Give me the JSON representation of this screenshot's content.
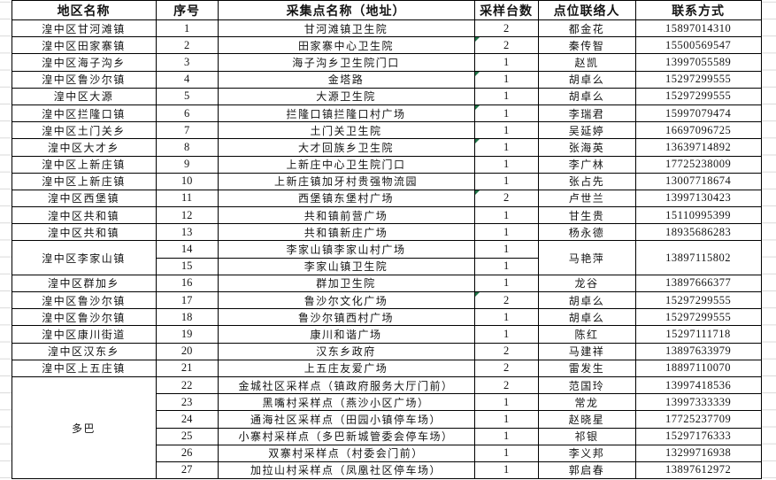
{
  "colors": {
    "flag_green": "#1f7246",
    "grid_line": "#d9d9d9",
    "cell_border": "#000000"
  },
  "table": {
    "headers": [
      "地区名称",
      "序号",
      "采集点名称（地址）",
      "采样台数",
      "点位联络人",
      "联系方式"
    ],
    "rows": [
      {
        "region": "湟中区甘河滩镇",
        "region_span": 1,
        "no": "1",
        "site": "甘河滩镇卫生院",
        "count": "2",
        "flag": false,
        "contact": "都金花",
        "merge_span": 1,
        "phone": "15897014310"
      },
      {
        "region": "湟中区田家寨镇",
        "region_span": 1,
        "no": "2",
        "site": "田家寨中心卫生院",
        "count": "2",
        "flag": true,
        "contact": "秦传智",
        "merge_span": 1,
        "phone": "15500569547"
      },
      {
        "region": "湟中区海子沟乡",
        "region_span": 1,
        "no": "3",
        "site": "海子沟乡卫生院门口",
        "count": "1",
        "flag": false,
        "contact": "赵凯",
        "merge_span": 1,
        "phone": "13997055589"
      },
      {
        "region": "湟中区鲁沙尔镇",
        "region_span": 1,
        "no": "4",
        "site": "金塔路",
        "count": "1",
        "flag": true,
        "contact": "胡卓么",
        "merge_span": 1,
        "phone": "15297299555"
      },
      {
        "region": "湟中区大源",
        "region_span": 1,
        "no": "5",
        "site": "大源卫生院",
        "count": "1",
        "flag": false,
        "contact": "胡卓么",
        "merge_span": 1,
        "phone": "15297299555"
      },
      {
        "region": "湟中区拦隆口镇",
        "region_span": 1,
        "no": "6",
        "site": "拦隆口镇拦隆口村广场",
        "count": "1",
        "flag": true,
        "contact": "李瑞君",
        "merge_span": 1,
        "phone": "15997079474"
      },
      {
        "region": "湟中区土门关乡",
        "region_span": 1,
        "no": "7",
        "site": "土门关卫生院",
        "count": "1",
        "flag": false,
        "contact": "吴延婷",
        "merge_span": 1,
        "phone": "16697096725"
      },
      {
        "region": "湟中区大才乡",
        "region_span": 1,
        "no": "8",
        "site": "大才回族乡卫生院",
        "count": "1",
        "flag": true,
        "contact": "张海英",
        "merge_span": 1,
        "phone": "13639714892"
      },
      {
        "region": "湟中区上新庄镇",
        "region_span": 1,
        "no": "9",
        "site": "上新庄中心卫生院门口",
        "count": "1",
        "flag": false,
        "contact": "李广林",
        "merge_span": 1,
        "phone": "17725238009"
      },
      {
        "region": "湟中区上新庄镇",
        "region_span": 1,
        "no": "10",
        "site": "上新庄镇加牙村贵强物流园",
        "count": "1",
        "flag": false,
        "contact": "张占先",
        "merge_span": 1,
        "phone": "13007718674"
      },
      {
        "region": "湟中区西堡镇",
        "region_span": 1,
        "no": "11",
        "site": "西堡镇东堡村广场",
        "count": "2",
        "flag": true,
        "contact": "卢世兰",
        "merge_span": 1,
        "phone": "13997130423"
      },
      {
        "region": "湟中区共和镇",
        "region_span": 1,
        "no": "12",
        "site": "共和镇前营广场",
        "count": "1",
        "flag": false,
        "contact": "甘生贵",
        "merge_span": 1,
        "phone": "15110995399"
      },
      {
        "region": "湟中区共和镇",
        "region_span": 1,
        "no": "13",
        "site": "共和镇新庄广场",
        "count": "1",
        "flag": false,
        "contact": "杨永德",
        "merge_span": 1,
        "phone": "18935686283"
      },
      {
        "region": "湟中区李家山镇",
        "region_span": 2,
        "no": "14",
        "site": "李家山镇李家山村广场",
        "count": "1",
        "flag": false,
        "contact": "马艳萍",
        "merge_span": 2,
        "phone": "13897115802"
      },
      {
        "region": null,
        "region_span": 0,
        "no": "15",
        "site": "李家山镇卫生院",
        "count": "1",
        "flag": false,
        "contact": null,
        "merge_span": 0,
        "phone": null
      },
      {
        "region": "湟中区群加乡",
        "region_span": 1,
        "no": "16",
        "site": "群加卫生院",
        "count": "1",
        "flag": false,
        "contact": "龙谷",
        "merge_span": 1,
        "phone": "13897666377"
      },
      {
        "region": "湟中区鲁沙尔镇",
        "region_span": 1,
        "no": "17",
        "site": "鲁沙尔文化广场",
        "count": "2",
        "flag": true,
        "contact": "胡卓么",
        "merge_span": 1,
        "phone": "15297299555"
      },
      {
        "region": "湟中区鲁沙尔镇",
        "region_span": 1,
        "no": "18",
        "site": "鲁沙尔镇西村广场",
        "count": "1",
        "flag": false,
        "contact": "胡卓么",
        "merge_span": 1,
        "phone": "15297299555"
      },
      {
        "region": "湟中区康川街道",
        "region_span": 1,
        "no": "19",
        "site": "康川和谐广场",
        "count": "1",
        "flag": false,
        "contact": "陈红",
        "merge_span": 1,
        "phone": "15297111718"
      },
      {
        "region": "湟中区汉东乡",
        "region_span": 1,
        "no": "20",
        "site": "汉东乡政府",
        "count": "2",
        "flag": false,
        "contact": "马建祥",
        "merge_span": 1,
        "phone": "13897633979"
      },
      {
        "region": "湟中区上五庄镇",
        "region_span": 1,
        "no": "21",
        "site": "上五庄友爱广场",
        "count": "2",
        "flag": false,
        "contact": "雷发生",
        "merge_span": 1,
        "phone": "18897110070"
      },
      {
        "region": "多巴",
        "region_span": 6,
        "no": "22",
        "site": "金城社区采样点（镇政府服务大厅门前）",
        "count": "2",
        "flag": false,
        "contact": "范国玲",
        "merge_span": 1,
        "phone": "13997418536"
      },
      {
        "region": null,
        "region_span": 0,
        "no": "23",
        "site": "黑嘴村采样点（燕沙小区广场）",
        "count": "1",
        "flag": false,
        "contact": "常龙",
        "merge_span": 1,
        "phone": "13997333339"
      },
      {
        "region": null,
        "region_span": 0,
        "no": "24",
        "site": "通海社区采样点（田园小镇停车场）",
        "count": "1",
        "flag": false,
        "contact": "赵晓星",
        "merge_span": 1,
        "phone": "17725237709"
      },
      {
        "region": null,
        "region_span": 0,
        "no": "25",
        "site": "小寨村采样点（多巴新城管委会停车场）",
        "count": "1",
        "flag": false,
        "contact": "祁银",
        "merge_span": 1,
        "phone": "15297176333"
      },
      {
        "region": null,
        "region_span": 0,
        "no": "26",
        "site": "双寨村采样点（村委会门前）",
        "count": "1",
        "flag": false,
        "contact": "李义邦",
        "merge_span": 1,
        "phone": "13299716938"
      },
      {
        "region": null,
        "region_span": 0,
        "no": "27",
        "site": "加拉山村采样点（凤凰社区停车场）",
        "count": "1",
        "flag": false,
        "contact": "郭启春",
        "merge_span": 1,
        "phone": "13897612972"
      }
    ]
  }
}
